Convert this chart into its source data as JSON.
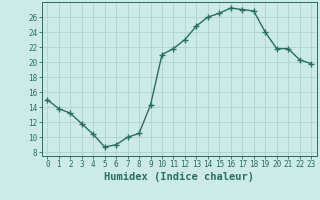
{
  "x": [
    0,
    1,
    2,
    3,
    4,
    5,
    6,
    7,
    8,
    9,
    10,
    11,
    12,
    13,
    14,
    15,
    16,
    17,
    18,
    19,
    20,
    21,
    22,
    23
  ],
  "y": [
    15.0,
    13.8,
    13.2,
    11.8,
    10.4,
    8.7,
    9.0,
    10.0,
    10.5,
    14.3,
    21.0,
    21.8,
    23.0,
    24.8,
    26.0,
    26.5,
    27.2,
    27.0,
    26.8,
    24.0,
    21.8,
    21.8,
    20.3,
    19.8
  ],
  "line_color": "#2a6e62",
  "marker": "+",
  "bg_color": "#cceae6",
  "grid_color": "#aed4ce",
  "xlabel": "Humidex (Indice chaleur)",
  "ylim": [
    7.5,
    28
  ],
  "xlim": [
    -0.5,
    23.5
  ],
  "yticks": [
    8,
    10,
    12,
    14,
    16,
    18,
    20,
    22,
    24,
    26
  ],
  "xticks": [
    0,
    1,
    2,
    3,
    4,
    5,
    6,
    7,
    8,
    9,
    10,
    11,
    12,
    13,
    14,
    15,
    16,
    17,
    18,
    19,
    20,
    21,
    22,
    23
  ],
  "tick_fontsize": 5.5,
  "xlabel_fontsize": 7.5,
  "linewidth": 1.0,
  "markersize": 4,
  "markeredgewidth": 1.0
}
